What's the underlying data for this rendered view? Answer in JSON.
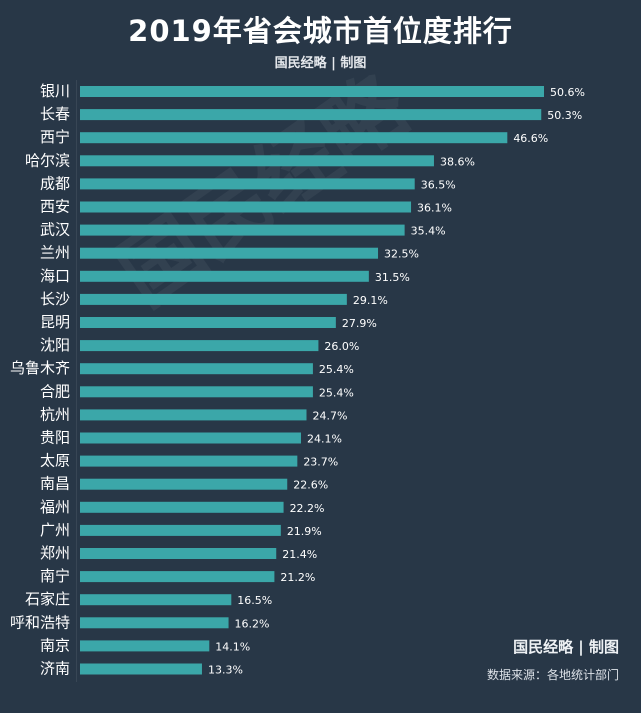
{
  "title": "2019年省会城市首位度排行",
  "subtitle_brand": "国民经略 | 制图",
  "footer": {
    "brand": "国民经略 | 制图",
    "source": "数据来源：各地统计部门"
  },
  "watermark": "国民经略",
  "colors": {
    "background": "#283747",
    "bar": "#3ba7a9",
    "text": "#ffffff"
  },
  "chart_data": {
    "type": "bar",
    "orientation": "horizontal",
    "title": "2019年省会城市首位度排行",
    "xlabel": "",
    "ylabel": "",
    "xlim": [
      0,
      50.6
    ],
    "grid": false,
    "categories": [
      "银川",
      "长春",
      "西宁",
      "哈尔滨",
      "成都",
      "西安",
      "武汉",
      "兰州",
      "海口",
      "长沙",
      "昆明",
      "沈阳",
      "乌鲁木齐",
      "合肥",
      "杭州",
      "贵阳",
      "太原",
      "南昌",
      "福州",
      "广州",
      "郑州",
      "南宁",
      "石家庄",
      "呼和浩特",
      "南京",
      "济南"
    ],
    "values": [
      50.6,
      50.3,
      46.6,
      38.6,
      36.5,
      36.1,
      35.4,
      32.5,
      31.5,
      29.1,
      27.9,
      26.0,
      25.4,
      25.4,
      24.7,
      24.1,
      23.7,
      22.6,
      22.2,
      21.9,
      21.4,
      21.2,
      16.5,
      16.2,
      14.1,
      13.3
    ],
    "value_labels": [
      "50.6%",
      "50.3%",
      "46.6%",
      "38.6%",
      "36.5%",
      "36.1%",
      "35.4%",
      "32.5%",
      "31.5%",
      "29.1%",
      "27.9%",
      "26.0%",
      "25.4%",
      "25.4%",
      "24.7%",
      "24.1%",
      "23.7%",
      "22.6%",
      "22.2%",
      "21.9%",
      "21.4%",
      "21.2%",
      "16.5%",
      "16.2%",
      "14.1%",
      "13.3%"
    ]
  }
}
